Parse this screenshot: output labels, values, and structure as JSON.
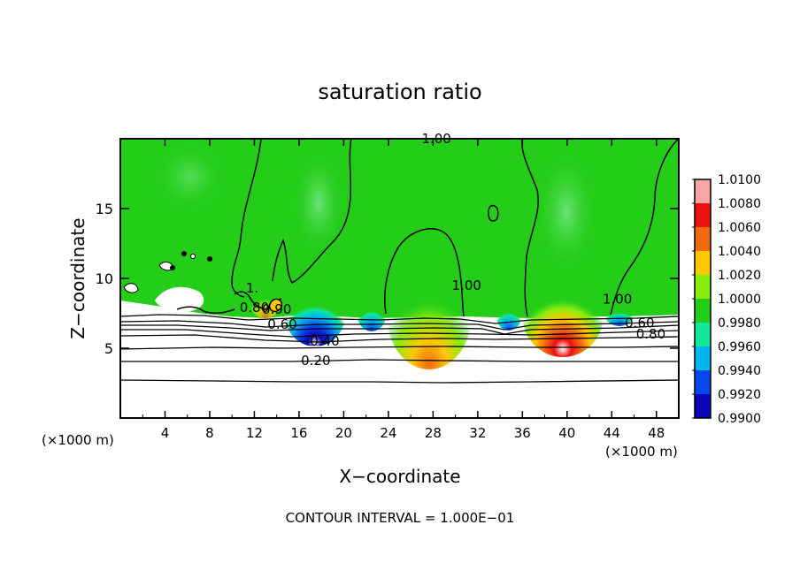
{
  "chart_data": {
    "type": "heatmap",
    "title": "saturation ratio",
    "xlabel": "X−coordinate",
    "ylabel": "Z−coordinate",
    "x_unit_left": "(×1000 m)",
    "x_unit_right": "(×1000 m)",
    "xlim": [
      0,
      50
    ],
    "ylim": [
      0,
      20
    ],
    "x_ticks": [
      4,
      8,
      12,
      16,
      20,
      24,
      28,
      32,
      36,
      40,
      44,
      48
    ],
    "y_ticks": [
      5,
      10,
      15
    ],
    "footer": "CONTOUR INTERVAL = 1.000E−01",
    "colorbar": {
      "levels": [
        "1.0100",
        "1.0080",
        "1.0060",
        "1.0040",
        "1.0020",
        "1.0000",
        "0.9980",
        "0.9960",
        "0.9940",
        "0.9920",
        "0.9900"
      ],
      "colors": [
        "#f7a5a5",
        "#ee1111",
        "#f06a10",
        "#ffc800",
        "#88ec10",
        "#23cd18",
        "#12e79a",
        "#00b6ee",
        "#0646ee",
        "#0a04b4",
        "#5a1798"
      ]
    },
    "contour_lines": [
      {
        "label": "1.00",
        "x": 28.3,
        "y": 20.0
      },
      {
        "label": "1.00",
        "x": 31.0,
        "y": 9.5
      },
      {
        "label": "1.00",
        "x": 44.5,
        "y": 8.5
      },
      {
        "label": "1.",
        "x": 11.8,
        "y": 9.3
      },
      {
        "label": "0.90",
        "x": 14.0,
        "y": 7.8
      },
      {
        "label": "0.60",
        "x": 46.5,
        "y": 6.8
      },
      {
        "label": "0.80",
        "x": 47.5,
        "y": 6.0
      },
      {
        "label": "0.80",
        "x": 12.0,
        "y": 7.9
      },
      {
        "label": "0.60",
        "x": 14.5,
        "y": 6.7
      },
      {
        "label": "0.40",
        "x": 18.3,
        "y": 5.5
      },
      {
        "label": "0.20",
        "x": 17.5,
        "y": 4.1
      }
    ]
  }
}
